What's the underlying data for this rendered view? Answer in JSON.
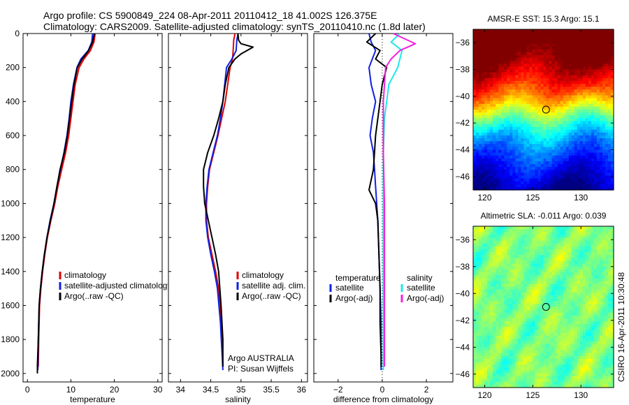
{
  "header": {
    "line1": "Argo profile: CS 5900849_224 08-Apr-2011 20110412_18 41.002S 126.375E",
    "line2": "Climatology: CARS2009. Satellite-adjusted climatology: synTS_20110410.nc (1.8d later)"
  },
  "side_label": "CSIRO 16-Apr-2011 10:30:48",
  "colors": {
    "climatology": "#e00000",
    "satellite": "#1020e0",
    "argo": "#000000",
    "salinity_satellite": "#20e8e8",
    "salinity_argo": "#f020e0"
  },
  "chart_data": [
    {
      "type": "line",
      "xlabel": "temperature",
      "ylabel": "",
      "xlim": [
        -1,
        31
      ],
      "ylim": [
        2050,
        0
      ],
      "xticks": [
        0,
        10,
        20,
        30
      ],
      "yticks": [
        0,
        200,
        400,
        600,
        800,
        1000,
        1200,
        1400,
        1600,
        1800,
        2000
      ],
      "legend": {
        "position": "lower-right",
        "entries": [
          "climatology",
          "satellite-adjusted climatology",
          "Argo(..raw -QC)"
        ]
      },
      "series": [
        {
          "name": "climatology",
          "color_key": "climatology",
          "x": [
            15.6,
            15.3,
            14.5,
            13.0,
            11.9,
            11.0,
            10.5,
            10.0,
            9.5,
            8.8,
            7.9,
            7.0,
            6.3,
            5.4,
            4.6,
            4.0,
            3.5,
            3.1,
            2.8,
            2.6,
            2.5
          ],
          "y": [
            0,
            50,
            100,
            150,
            200,
            300,
            400,
            500,
            600,
            700,
            800,
            900,
            1000,
            1100,
            1200,
            1300,
            1400,
            1500,
            1600,
            1800,
            1960
          ]
        },
        {
          "name": "satellite-adjusted climatology",
          "color_key": "satellite",
          "x": [
            15.0,
            14.8,
            14.0,
            12.3,
            11.4,
            10.6,
            10.0,
            9.6,
            9.1,
            8.4,
            7.6,
            6.8,
            6.1,
            5.2,
            4.5,
            3.9,
            3.4,
            3.0,
            2.7,
            2.5,
            2.4
          ],
          "y": [
            0,
            50,
            100,
            150,
            200,
            300,
            400,
            500,
            600,
            700,
            800,
            900,
            1000,
            1100,
            1200,
            1300,
            1400,
            1500,
            1600,
            1800,
            1980
          ]
        },
        {
          "name": "Argo(..raw -QC)",
          "color_key": "argo",
          "x": [
            15.4,
            15.0,
            14.1,
            12.6,
            11.5,
            10.7,
            10.2,
            9.7,
            9.2,
            8.5,
            7.5,
            6.8,
            6.1,
            5.3,
            4.5,
            3.9,
            3.4,
            3.0,
            2.7,
            2.5,
            2.3,
            2.3
          ],
          "y": [
            0,
            50,
            100,
            150,
            200,
            300,
            400,
            500,
            600,
            700,
            800,
            900,
            1000,
            1100,
            1200,
            1300,
            1400,
            1500,
            1600,
            1800,
            1950,
            2000
          ]
        }
      ]
    },
    {
      "type": "line",
      "xlabel": "salinity",
      "ylabel": "",
      "xlim": [
        33.8,
        36.1
      ],
      "ylim": [
        2050,
        0
      ],
      "xticks": [
        34,
        34.5,
        35,
        35.5,
        36
      ],
      "xtick_labels": [
        "34",
        "34.5",
        "35",
        "35.5",
        "36"
      ],
      "legend": {
        "position": "lower-right",
        "entries": [
          "climatology",
          "satellite adj. clim.",
          "Argo(..raw -QC)"
        ]
      },
      "annotation": [
        "Argo AUSTRALIA",
        "PI: Susan Wijffels"
      ],
      "series": [
        {
          "name": "climatology",
          "color_key": "climatology",
          "x": [
            34.9,
            34.88,
            34.87,
            34.86,
            34.82,
            34.78,
            34.74,
            34.68,
            34.62,
            34.55,
            34.48,
            34.45,
            34.43,
            34.43,
            34.46,
            34.52,
            34.58,
            34.63,
            34.67,
            34.7
          ],
          "y": [
            0,
            40,
            100,
            150,
            200,
            300,
            400,
            500,
            600,
            700,
            800,
            900,
            1000,
            1100,
            1200,
            1300,
            1400,
            1500,
            1700,
            1960
          ]
        },
        {
          "name": "satellite adj. clim.",
          "color_key": "satellite",
          "x": [
            34.95,
            34.93,
            34.92,
            34.85,
            34.76,
            34.73,
            34.7,
            34.66,
            34.61,
            34.54,
            34.47,
            34.44,
            34.42,
            34.42,
            34.45,
            34.5,
            34.56,
            34.61,
            34.66,
            34.7
          ],
          "y": [
            0,
            40,
            100,
            150,
            200,
            300,
            400,
            500,
            600,
            700,
            800,
            900,
            1000,
            1100,
            1200,
            1300,
            1400,
            1500,
            1700,
            1980
          ]
        },
        {
          "name": "Argo(..raw -QC)",
          "color_key": "argo",
          "x": [
            34.95,
            34.96,
            35.0,
            35.2,
            35.0,
            34.9,
            34.8,
            34.74,
            34.7,
            34.63,
            34.55,
            34.45,
            34.38,
            34.38,
            34.4,
            34.46,
            34.52,
            34.58,
            34.63,
            34.67,
            34.7,
            34.7
          ],
          "y": [
            0,
            40,
            60,
            80,
            120,
            150,
            200,
            300,
            400,
            500,
            600,
            700,
            800,
            900,
            1000,
            1100,
            1200,
            1300,
            1400,
            1600,
            1800,
            1960
          ]
        }
      ]
    },
    {
      "type": "line",
      "xlabel": "difference from climatology",
      "ylabel": "",
      "xlim": [
        -3.1,
        3.2
      ],
      "ylim": [
        2050,
        0
      ],
      "xticks": [
        -2,
        0,
        2
      ],
      "legend": {
        "position": "lower-middle",
        "entries": [
          {
            "group": "temperature",
            "items": [
              "satellite",
              "Argo(-adj)"
            ]
          },
          {
            "group": "salinity",
            "items": [
              "satellite",
              "Argo(-adj)"
            ]
          }
        ]
      },
      "series": [
        {
          "name": "satellite",
          "group": "temperature",
          "color_key": "satellite",
          "x": [
            -0.6,
            -0.5,
            -0.3,
            -0.6,
            -0.5,
            -0.3,
            -0.45,
            -0.55,
            -0.4,
            -0.35,
            -0.3,
            -0.25,
            -0.2,
            -0.15,
            -0.1,
            -0.05,
            -0.05,
            -0.05
          ],
          "y": [
            0,
            50,
            100,
            200,
            300,
            400,
            500,
            600,
            700,
            800,
            900,
            1000,
            1100,
            1300,
            1500,
            1700,
            1900,
            1980
          ]
        },
        {
          "name": "Argo(-adj)",
          "group": "temperature",
          "color_key": "argo",
          "x": [
            -0.3,
            -0.7,
            -0.1,
            -0.3,
            0.2,
            0.0,
            -0.1,
            -0.2,
            -0.3,
            -0.4,
            -0.6,
            -0.3,
            -0.2,
            -0.15,
            -0.1,
            -0.1,
            -0.05,
            -0.05
          ],
          "y": [
            0,
            50,
            100,
            150,
            200,
            300,
            400,
            500,
            600,
            800,
            920,
            1000,
            1100,
            1300,
            1500,
            1700,
            1900,
            1960
          ]
        },
        {
          "name": "satellite",
          "group": "salinity",
          "color_key": "salinity_satellite",
          "x": [
            0.8,
            0.4,
            0.9,
            0.7,
            0.3,
            0.1,
            0.05,
            0.05,
            0.05,
            0.05,
            0.05
          ],
          "y": [
            0,
            50,
            100,
            200,
            300,
            500,
            700,
            1000,
            1300,
            1600,
            1980
          ]
        },
        {
          "name": "Argo(-adj)",
          "group": "salinity",
          "color_key": "salinity_argo",
          "x": [
            0.5,
            1.5,
            0.8,
            0.4,
            0.15,
            0.05,
            0.05,
            0.1,
            0.1,
            0.1
          ],
          "y": [
            0,
            60,
            100,
            150,
            200,
            400,
            700,
            1000,
            1500,
            1960
          ]
        }
      ]
    },
    {
      "type": "heatmap",
      "title": "AMSR-E SST: 15.3 Argo: 15.1",
      "xlim": [
        118.8,
        133.4
      ],
      "ylim": [
        -47,
        -35
      ],
      "xticks": [
        120,
        125,
        130
      ],
      "yticks": [
        -36,
        -38,
        -40,
        -42,
        -44,
        -46
      ],
      "marker": {
        "lon": 126.375,
        "lat": -41.002
      },
      "colormap": "jet"
    },
    {
      "type": "heatmap",
      "title": "Altimetric SLA: -0.011 Argo: 0.039",
      "xlim": [
        118.8,
        133.4
      ],
      "ylim": [
        -47,
        -35
      ],
      "xticks": [
        120,
        125,
        130
      ],
      "yticks": [
        -36,
        -38,
        -40,
        -42,
        -44,
        -46
      ],
      "marker": {
        "lon": 126.375,
        "lat": -41.002
      },
      "colormap": "jet"
    }
  ]
}
